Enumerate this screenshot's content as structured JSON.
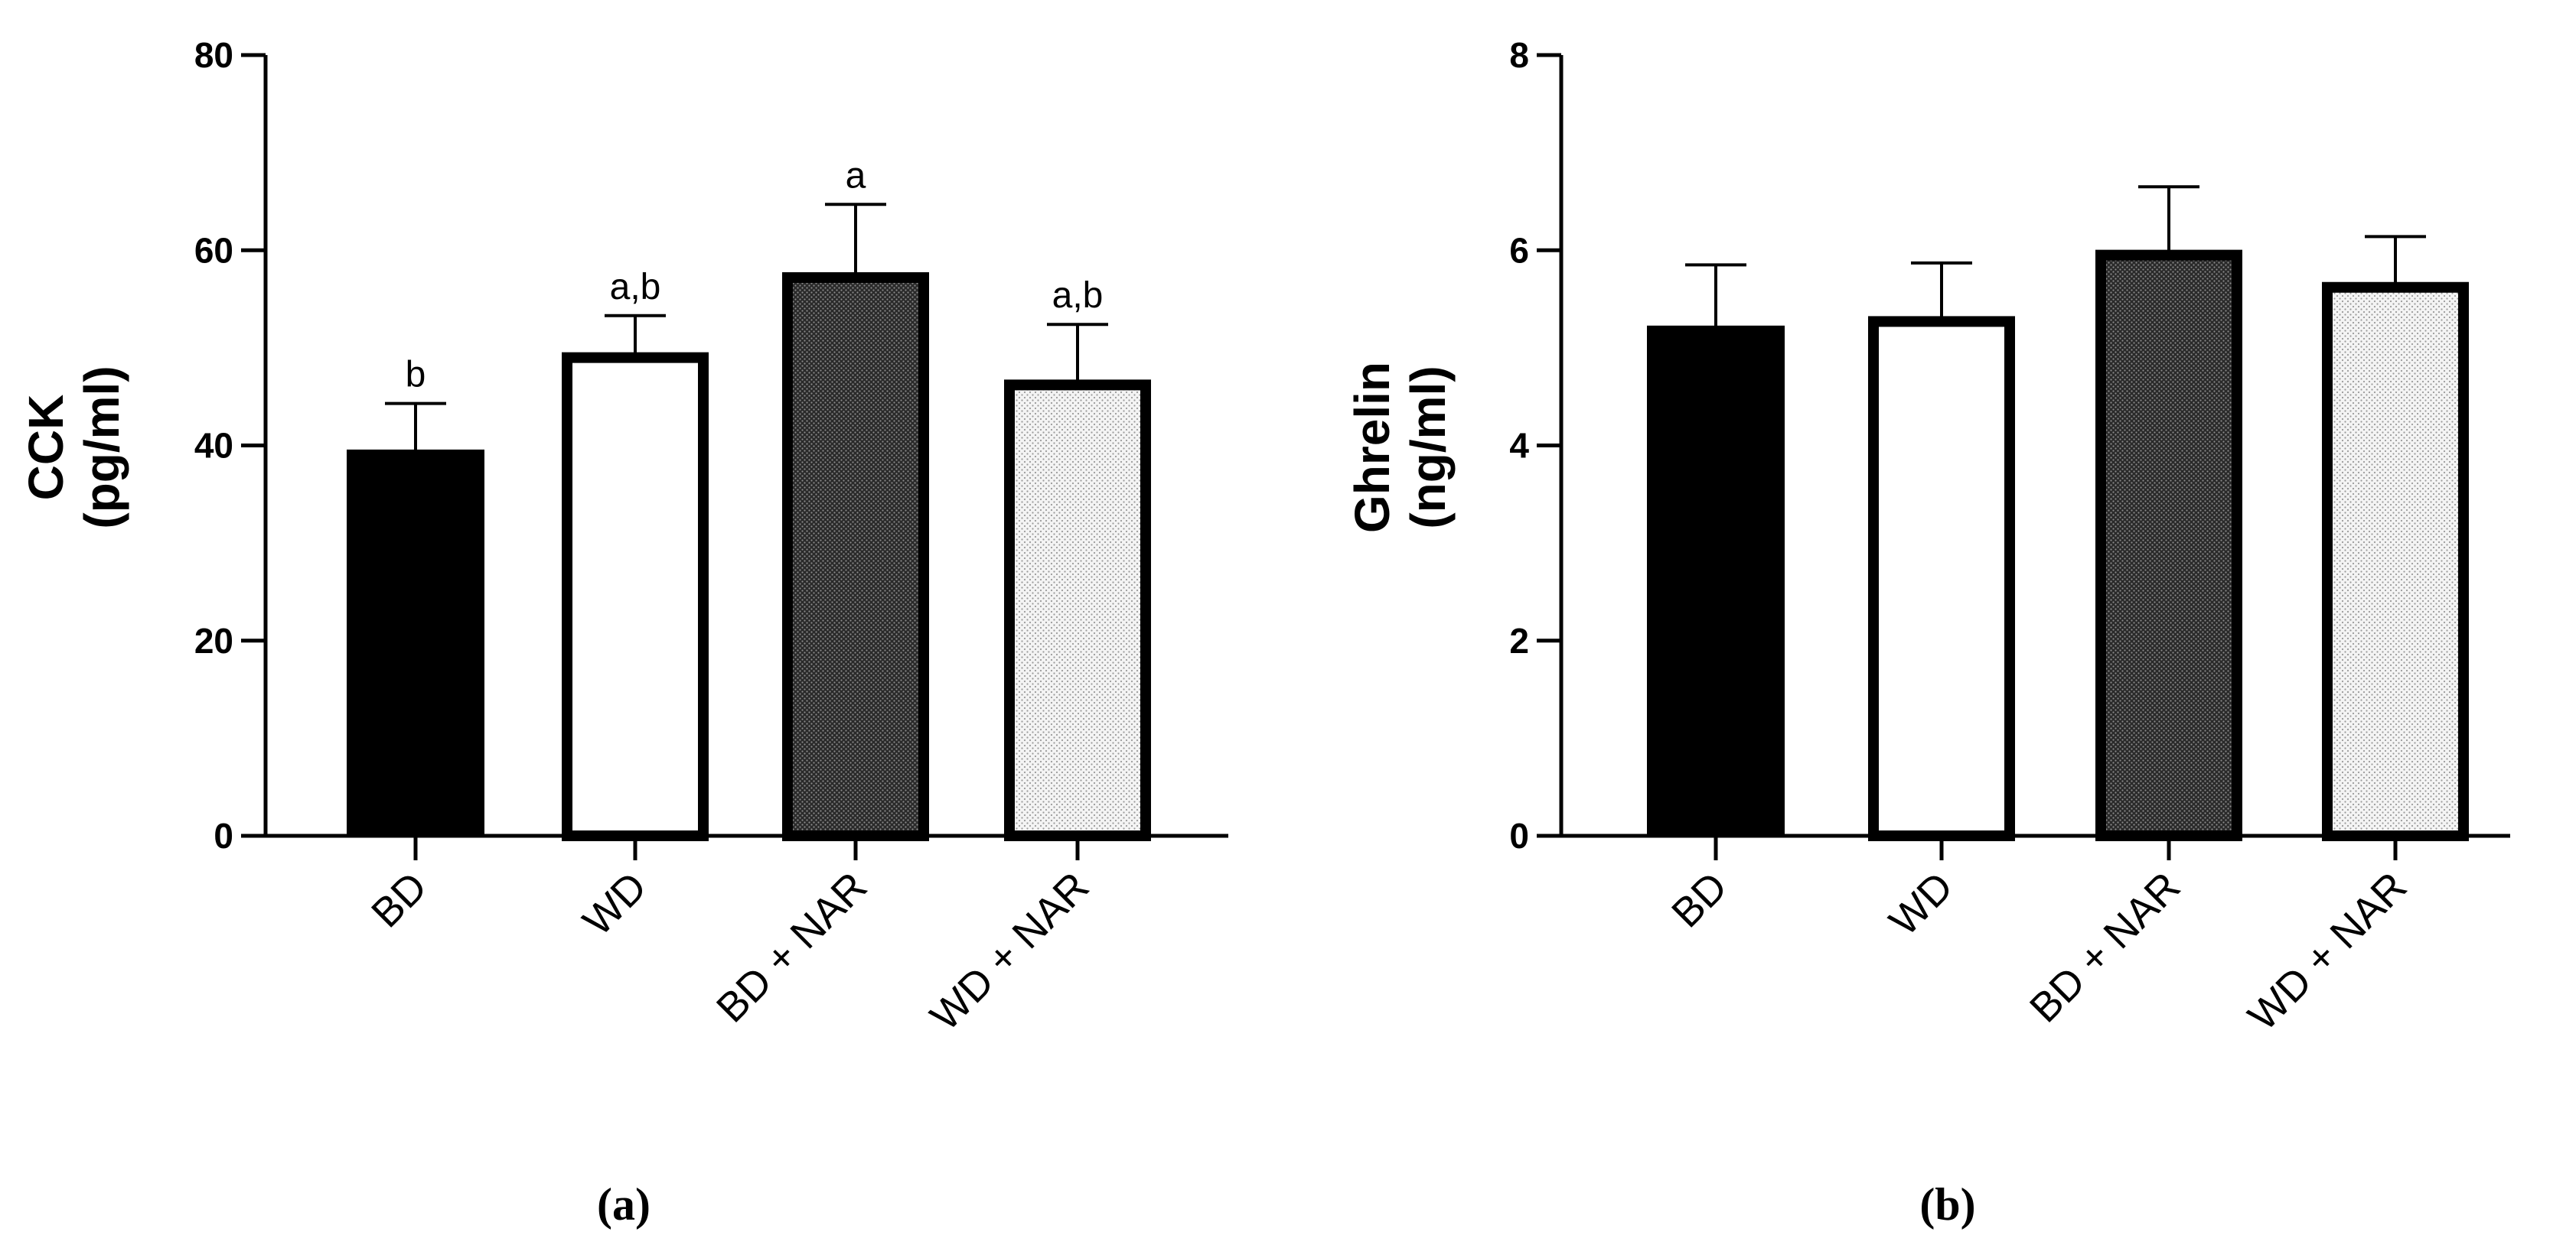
{
  "chart_data": [
    {
      "type": "bar",
      "panel_label": "(a)",
      "ylabel_line1": "CCK",
      "ylabel_line2": "(pg/ml)",
      "ylim": [
        0,
        80
      ],
      "yticks": [
        0,
        20,
        40,
        60,
        80
      ],
      "categories": [
        "BD",
        "WD",
        "BD + NAR",
        "WD + NAR"
      ],
      "values": [
        39.5,
        49,
        57.2,
        46.2
      ],
      "errors": [
        4.8,
        4.3,
        7.5,
        6.2
      ],
      "significance": [
        "b",
        "a,b",
        "a",
        "a,b"
      ],
      "fills": [
        "solid-black",
        "white",
        "dense-dots",
        "light-dots"
      ]
    },
    {
      "type": "bar",
      "panel_label": "(b)",
      "ylabel_line1": "Ghrelin",
      "ylabel_line2": "(ng/ml)",
      "ylim": [
        0,
        8
      ],
      "yticks": [
        0,
        2,
        4,
        6,
        8
      ],
      "categories": [
        "BD",
        "WD",
        "BD + NAR",
        "WD + NAR"
      ],
      "values": [
        5.22,
        5.27,
        5.95,
        5.62
      ],
      "errors": [
        0.63,
        0.6,
        0.7,
        0.52
      ],
      "significance": [
        "",
        "",
        "",
        ""
      ],
      "fills": [
        "solid-black",
        "white",
        "dense-dots",
        "light-dots"
      ]
    }
  ]
}
